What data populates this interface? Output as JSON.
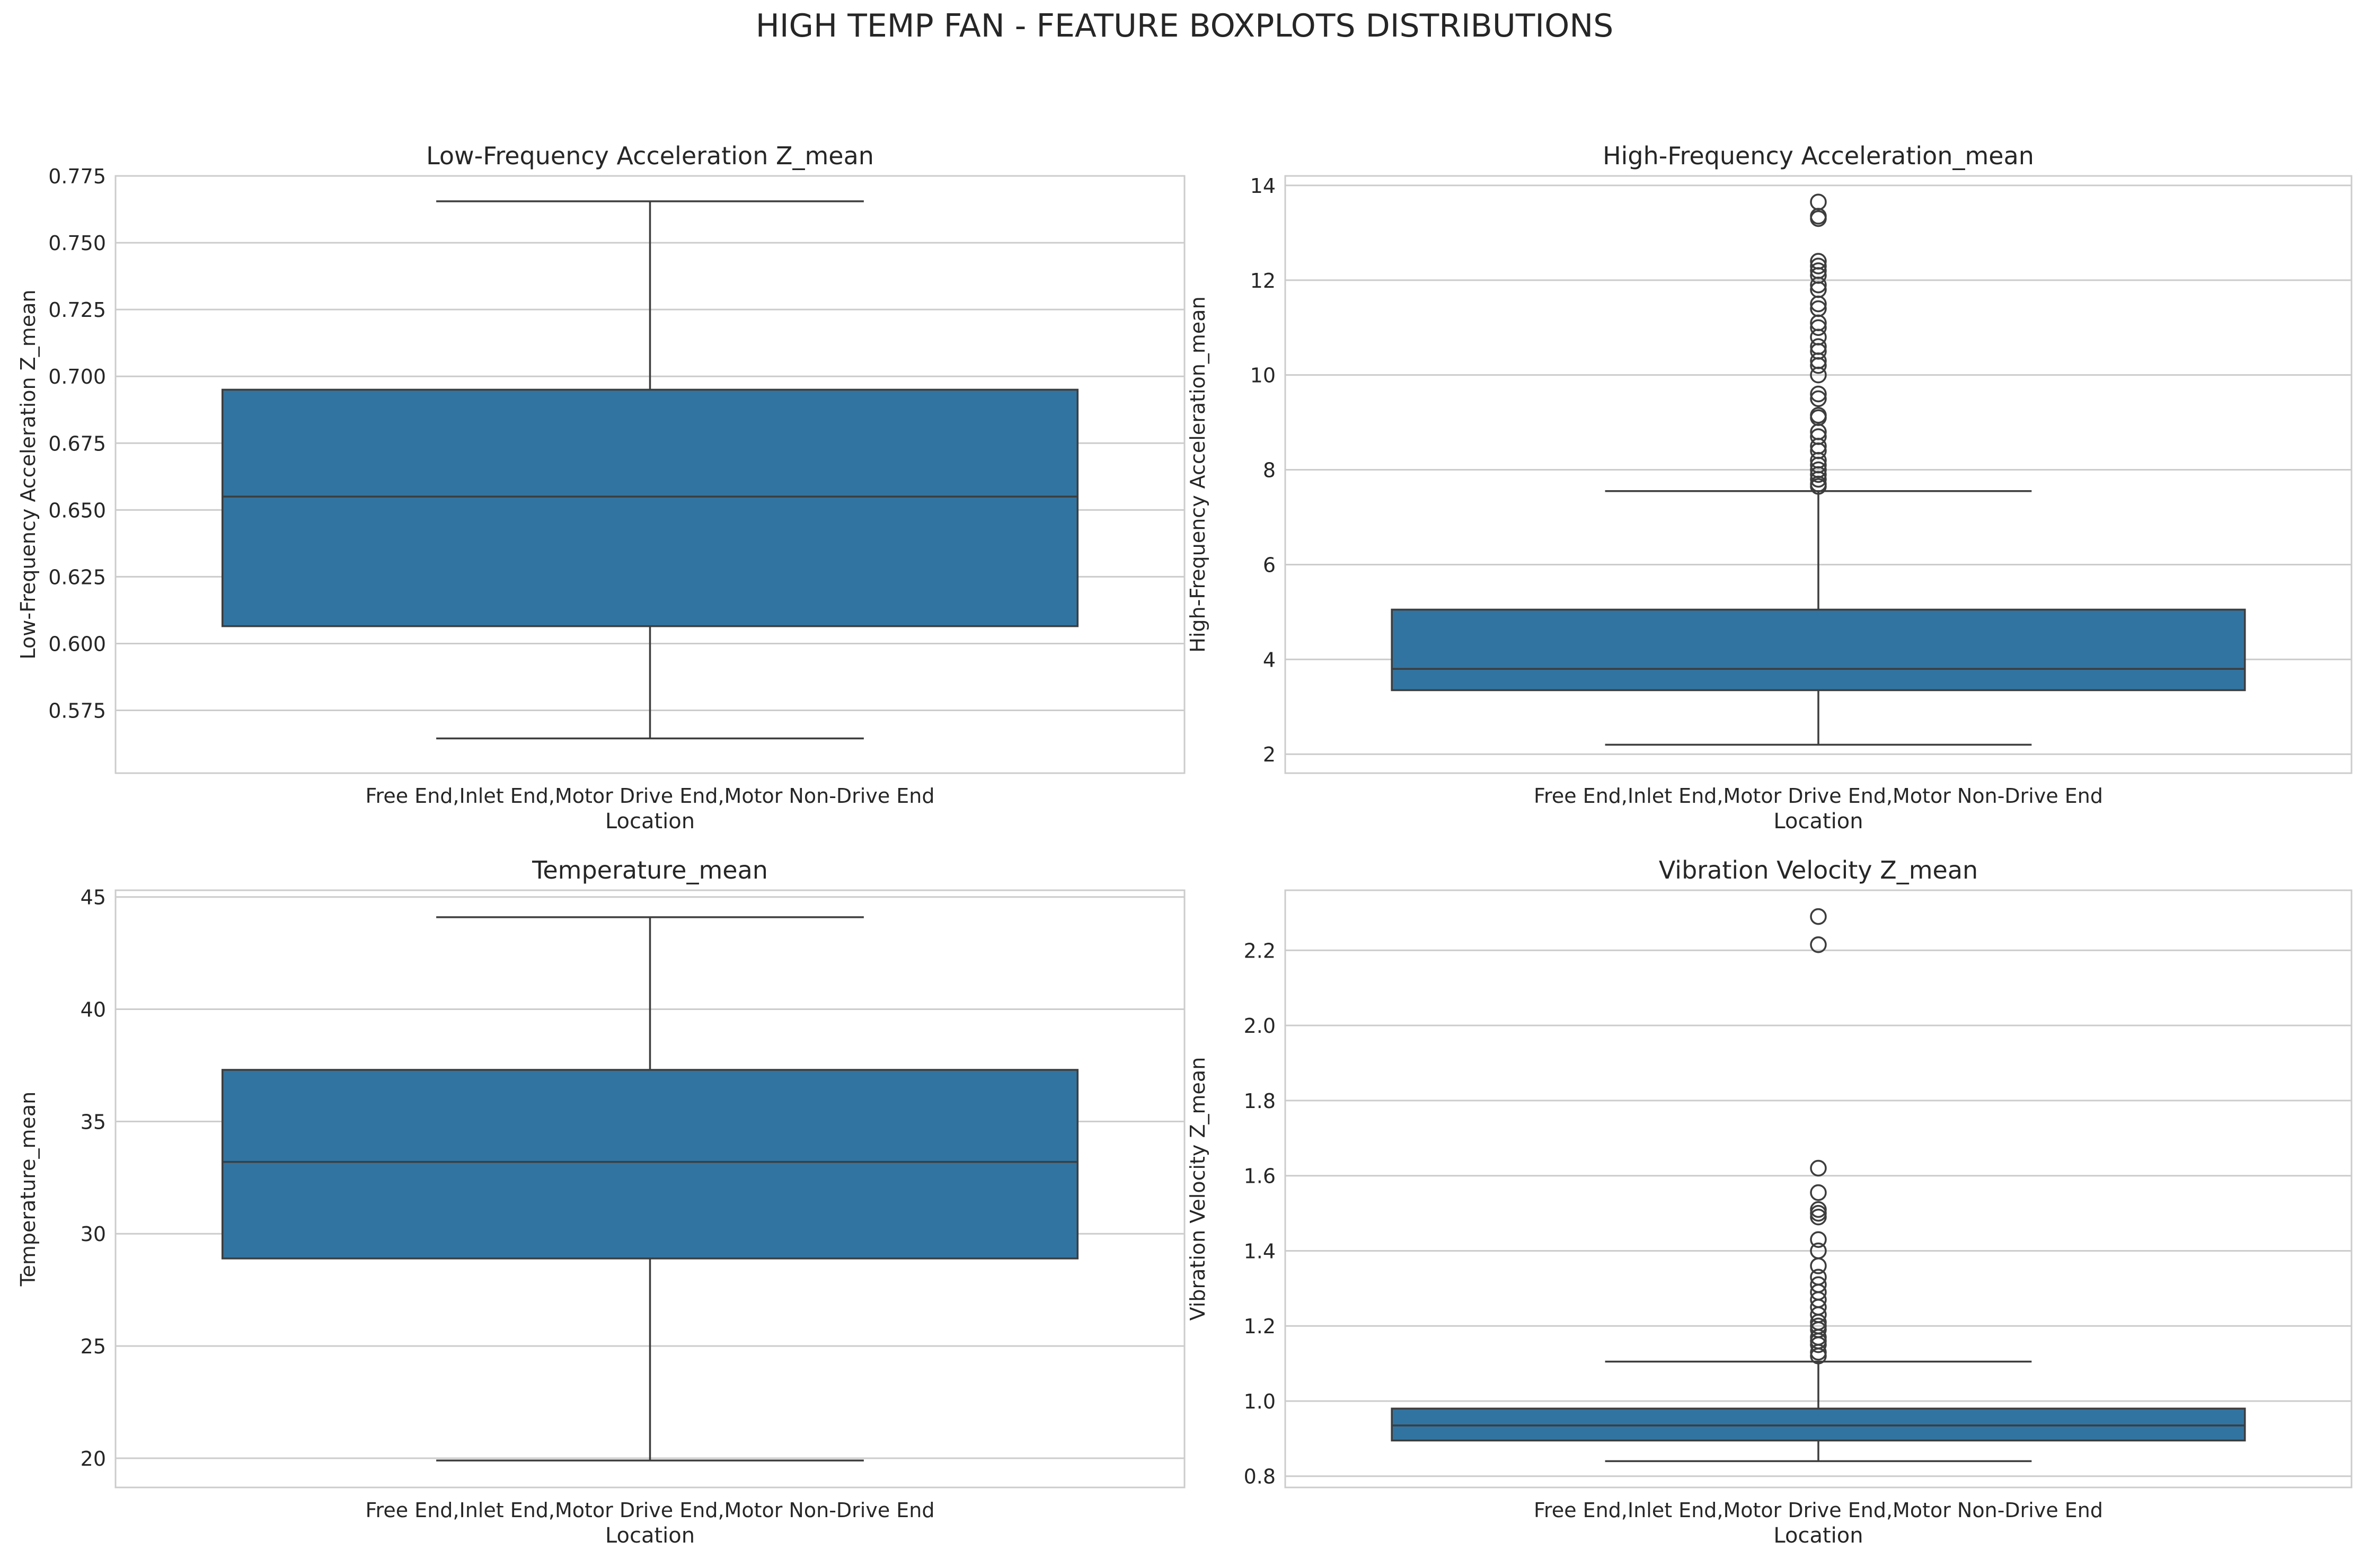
{
  "suptitle": "HIGH TEMP FAN - FEATURE BOXPLOTS DISTRIBUTIONS",
  "colors": {
    "box": "#3274a1",
    "line": "#3d3d3d",
    "grid": "#cccccc",
    "frame": "#cccccc",
    "text": "#262626"
  },
  "chart_data": [
    {
      "type": "box",
      "title": "Low-Frequency Acceleration Z_mean",
      "xlabel": "Location",
      "ylabel": "Low-Frequency Acceleration Z_mean",
      "categories": [
        "Free End,Inlet End,Motor Drive End,Motor Non-Drive End"
      ],
      "ylim": [
        0.5515,
        0.775
      ],
      "yticks": [
        0.575,
        0.6,
        0.625,
        0.65,
        0.675,
        0.7,
        0.725,
        0.75,
        0.775
      ],
      "ytick_labels": [
        "0.575",
        "0.600",
        "0.625",
        "0.650",
        "0.675",
        "0.700",
        "0.725",
        "0.750",
        "0.775"
      ],
      "stats": {
        "whisker_low": 0.5645,
        "q1": 0.6065,
        "median": 0.655,
        "q3": 0.695,
        "whisker_high": 0.7655
      },
      "outliers": [],
      "grid": true
    },
    {
      "type": "box",
      "title": "High-Frequency Acceleration_mean",
      "xlabel": "Location",
      "ylabel": "High-Frequency Acceleration_mean",
      "categories": [
        "Free End,Inlet End,Motor Drive End,Motor Non-Drive End"
      ],
      "ylim": [
        1.6,
        14.2
      ],
      "yticks": [
        2,
        4,
        6,
        8,
        10,
        12,
        14
      ],
      "ytick_labels": [
        "2",
        "4",
        "6",
        "8",
        "10",
        "12",
        "14"
      ],
      "stats": {
        "whisker_low": 2.2,
        "q1": 3.35,
        "median": 3.8,
        "q3": 5.05,
        "whisker_high": 7.55
      },
      "outliers": [
        7.65,
        7.7,
        7.8,
        7.9,
        8.0,
        8.1,
        8.2,
        8.4,
        8.5,
        8.7,
        8.8,
        9.1,
        9.15,
        9.5,
        9.6,
        10.0,
        10.2,
        10.3,
        10.5,
        10.6,
        10.8,
        11.0,
        11.1,
        11.4,
        11.5,
        11.8,
        11.9,
        12.1,
        12.2,
        12.3,
        12.4,
        13.3,
        13.35,
        13.65
      ],
      "grid": true
    },
    {
      "type": "box",
      "title": "Temperature_mean",
      "xlabel": "Location",
      "ylabel": "Temperature_mean",
      "categories": [
        "Free End,Inlet End,Motor Drive End,Motor Non-Drive End"
      ],
      "ylim": [
        18.7,
        45.3
      ],
      "yticks": [
        20,
        25,
        30,
        35,
        40,
        45
      ],
      "ytick_labels": [
        "20",
        "25",
        "30",
        "35",
        "40",
        "45"
      ],
      "stats": {
        "whisker_low": 19.9,
        "q1": 28.9,
        "median": 33.2,
        "q3": 37.3,
        "whisker_high": 44.1
      },
      "outliers": [],
      "grid": true
    },
    {
      "type": "box",
      "title": "Vibration Velocity Z_mean",
      "xlabel": "Location",
      "ylabel": "Vibration Velocity Z_mean",
      "categories": [
        "Free End,Inlet End,Motor Drive End,Motor Non-Drive End"
      ],
      "ylim": [
        0.77,
        2.36
      ],
      "yticks": [
        0.8,
        1.0,
        1.2,
        1.4,
        1.6,
        1.8,
        2.0,
        2.2
      ],
      "ytick_labels": [
        "0.8",
        "1.0",
        "1.2",
        "1.4",
        "1.6",
        "1.8",
        "2.0",
        "2.2"
      ],
      "stats": {
        "whisker_low": 0.84,
        "q1": 0.895,
        "median": 0.935,
        "q3": 0.98,
        "whisker_high": 1.105
      },
      "outliers": [
        1.12,
        1.13,
        1.15,
        1.16,
        1.17,
        1.19,
        1.2,
        1.21,
        1.23,
        1.25,
        1.27,
        1.29,
        1.31,
        1.33,
        1.36,
        1.4,
        1.43,
        1.49,
        1.5,
        1.51,
        1.555,
        1.62,
        2.215,
        2.29
      ],
      "grid": true
    }
  ]
}
